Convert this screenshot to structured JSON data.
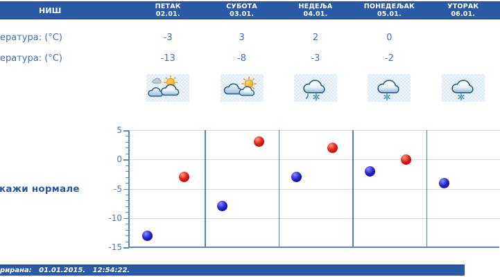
{
  "colors": {
    "bar_blue": "#2a5aa5",
    "bar_border": "#1d4079",
    "text_blue": "#3f6eb4",
    "link_blue": "#2456a3",
    "axis_blue": "#5d87b5",
    "separator_blue": "#4d80b8",
    "grid_gray": "#dcdcdc",
    "tick_label": "#4a7ba8",
    "dot_red": "#cc1414",
    "dot_blue": "#1818bb"
  },
  "header": {
    "city": "НИШ",
    "days": [
      {
        "name": "ПЕТАК",
        "date": "02.01."
      },
      {
        "name": "СУБОТА",
        "date": "03.01."
      },
      {
        "name": "НЕДЕЉА",
        "date": "04.01."
      },
      {
        "name": "ПОНЕДЕЉАК",
        "date": "05.01."
      },
      {
        "name": "УТОРАК",
        "date": "06.01."
      }
    ]
  },
  "table": {
    "rows": [
      {
        "label": "ература: (°C)",
        "values": [
          "-3",
          "3",
          "2",
          "0",
          ""
        ]
      },
      {
        "label": "ература: (°C)",
        "values": [
          "-13",
          "-8",
          "-3",
          "-2",
          ""
        ]
      }
    ],
    "icons": [
      "partly-cloudy-sun",
      "sun-behind-clouds",
      "cloud-sleet",
      "cloud-snow",
      "cloud-snow"
    ]
  },
  "link": {
    "label": "кажи нормале"
  },
  "footer": {
    "text": "рирана:   01.01.2015.   12:54:22."
  },
  "chart_data": {
    "type": "scatter",
    "categories": [
      "ПЕТАК 02.01.",
      "СУБОТА 03.01.",
      "НЕДЕЉА 04.01.",
      "ПОНЕДЕЉАК 05.01.",
      "УТОРАК 06.01."
    ],
    "series": [
      {
        "name": "max-temperature",
        "color": "#cc1414",
        "values": [
          -3,
          3,
          2,
          0,
          null
        ]
      },
      {
        "name": "min-temperature",
        "color": "#1818bb",
        "values": [
          -13,
          -8,
          -3,
          -2,
          -4
        ]
      }
    ],
    "ylim": [
      -15,
      5
    ],
    "yticks": [
      5,
      0,
      -5,
      -10,
      -15
    ],
    "minor_tick_step": 1,
    "grid": true,
    "legend": false,
    "title": "",
    "xlabel": "",
    "ylabel": ""
  }
}
